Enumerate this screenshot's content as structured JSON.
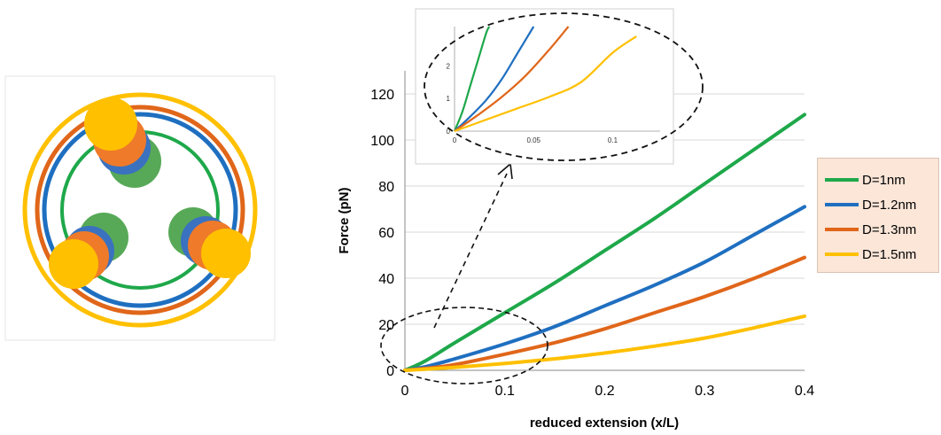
{
  "chart_data": [
    {
      "type": "line",
      "title": "",
      "xlabel": "reduced extension (x/L)",
      "ylabel": "Force (pN)",
      "xlim": [
        0,
        0.4
      ],
      "ylim": [
        0,
        130
      ],
      "xticks": [
        "0",
        "0.1",
        "0.2",
        "0.3",
        "0.4"
      ],
      "yticks": [
        "0",
        "20",
        "40",
        "60",
        "80",
        "100",
        "120"
      ],
      "grid": "horizontal",
      "legend_position": "right",
      "series": [
        {
          "name": "D=1nm",
          "color": "#1ea84a",
          "x": [
            0,
            0.02,
            0.05,
            0.1,
            0.15,
            0.2,
            0.25,
            0.3,
            0.35,
            0.4
          ],
          "y": [
            0,
            4,
            12,
            25,
            38,
            52,
            66,
            81,
            96,
            111
          ]
        },
        {
          "name": "D=1.2nm",
          "color": "#1f6fc0",
          "x": [
            0,
            0.02,
            0.05,
            0.1,
            0.15,
            0.2,
            0.25,
            0.3,
            0.35,
            0.4
          ],
          "y": [
            0,
            1.5,
            5,
            11.5,
            19,
            28,
            37,
            47,
            59,
            71
          ]
        },
        {
          "name": "D=1.3nm",
          "color": "#e0661a",
          "x": [
            0,
            0.02,
            0.05,
            0.1,
            0.15,
            0.2,
            0.25,
            0.3,
            0.35,
            0.4
          ],
          "y": [
            0,
            0.8,
            2.5,
            7,
            12,
            18,
            25,
            32,
            40,
            49
          ]
        },
        {
          "name": "D=1.5nm",
          "color": "#ffc000",
          "x": [
            0,
            0.02,
            0.05,
            0.1,
            0.15,
            0.2,
            0.25,
            0.3,
            0.35,
            0.4
          ],
          "y": [
            0,
            0.5,
            1.3,
            3,
            5,
            7.5,
            10.5,
            14,
            18.5,
            23.5
          ]
        }
      ]
    },
    {
      "type": "line",
      "title": "",
      "xlabel": "",
      "ylabel": "",
      "xlim": [
        0,
        0.13
      ],
      "ylim": [
        0,
        3.2
      ],
      "xticks": [
        "0",
        "0.05",
        "0.1"
      ],
      "yticks": [
        "0",
        "1",
        "2"
      ],
      "series": [
        {
          "name": "D=1nm",
          "color": "#1ea84a",
          "x": [
            0,
            0.005,
            0.01,
            0.015,
            0.02,
            0.022
          ],
          "y": [
            0,
            0.6,
            1.4,
            2.2,
            3.0,
            3.2
          ]
        },
        {
          "name": "D=1.2nm",
          "color": "#1f6fc0",
          "x": [
            0,
            0.01,
            0.02,
            0.03,
            0.04,
            0.05
          ],
          "y": [
            0,
            0.45,
            0.95,
            1.6,
            2.4,
            3.2
          ]
        },
        {
          "name": "D=1.3nm",
          "color": "#e0661a",
          "x": [
            0,
            0.015,
            0.03,
            0.045,
            0.06,
            0.072
          ],
          "y": [
            0,
            0.5,
            1.05,
            1.7,
            2.5,
            3.2
          ]
        },
        {
          "name": "D=1.5nm",
          "color": "#ffc000",
          "x": [
            0,
            0.02,
            0.04,
            0.06,
            0.08,
            0.1,
            0.115
          ],
          "y": [
            0,
            0.35,
            0.7,
            1.05,
            1.5,
            2.4,
            2.9
          ]
        }
      ]
    }
  ],
  "legend": {
    "items": [
      {
        "label": "D=1nm",
        "color": "#1ea84a"
      },
      {
        "label": "D=1.2nm",
        "color": "#1f6fc0"
      },
      {
        "label": "D=1.3nm",
        "color": "#e0661a"
      },
      {
        "label": "D=1.5nm",
        "color": "#ffc000"
      }
    ]
  },
  "diagram": {
    "ring_colors": [
      "#ffc000",
      "#e0661a",
      "#1f6fc0",
      "#1ea84a"
    ]
  }
}
